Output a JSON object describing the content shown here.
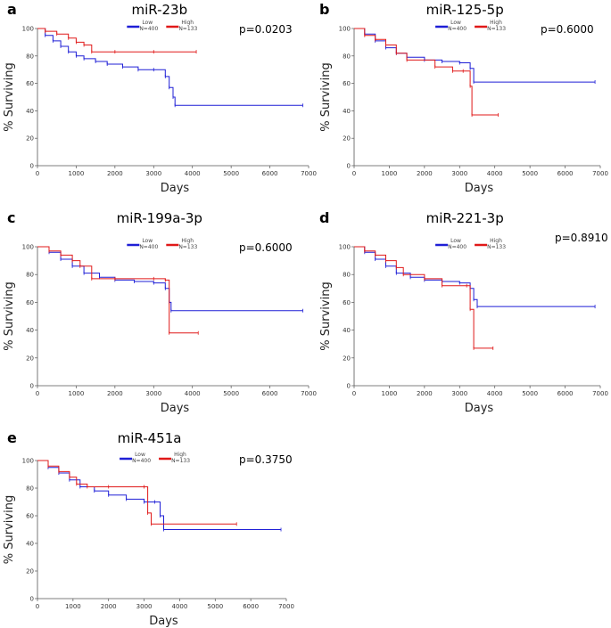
{
  "figure": {
    "panels": [
      {
        "letter": "a",
        "title": "miR-23b",
        "pvalue": "p=0.0203"
      },
      {
        "letter": "b",
        "title": "miR-125-5p",
        "pvalue": "p=0.6000"
      },
      {
        "letter": "c",
        "title": "miR-199a-3p",
        "pvalue": "p=0.6000"
      },
      {
        "letter": "d",
        "title": "miR-221-3p",
        "pvalue": "p=0.8910"
      },
      {
        "letter": "e",
        "title": "miR-451a",
        "pvalue": "p=0.3750"
      }
    ]
  },
  "colors": {
    "low": "#1f1fd6",
    "high": "#e01919",
    "axis": "#555555"
  },
  "chart_data": [
    {
      "type": "line",
      "title": "miR-23b",
      "xlabel": "Days",
      "ylabel": "% Surviving",
      "xlim": [
        0,
        7000
      ],
      "ylim": [
        0,
        100
      ],
      "xticks": [
        0,
        1000,
        2000,
        3000,
        4000,
        5000,
        6000,
        7000
      ],
      "yticks": [
        0,
        20,
        40,
        60,
        80,
        100
      ],
      "annotation": "p=0.0203",
      "legend": [
        {
          "name": "Low",
          "n": "N=400"
        },
        {
          "name": "High",
          "n": "N=133"
        }
      ],
      "series": [
        {
          "name": "Low",
          "key": "low",
          "x": [
            0,
            200,
            400,
            600,
            800,
            1000,
            1200,
            1500,
            1800,
            2200,
            2600,
            3000,
            3300,
            3400,
            3500,
            3550,
            6850
          ],
          "y": [
            100,
            95,
            91,
            87,
            83,
            80,
            78,
            76,
            74,
            72,
            70,
            70,
            65,
            57,
            50,
            44,
            44
          ]
        },
        {
          "name": "High",
          "key": "high",
          "x": [
            0,
            200,
            500,
            800,
            1000,
            1200,
            1400,
            2000,
            3000,
            4100
          ],
          "y": [
            100,
            98,
            96,
            93,
            90,
            88,
            83,
            83,
            83,
            83
          ]
        }
      ]
    },
    {
      "type": "line",
      "title": "miR-125-5p",
      "xlabel": "Days",
      "ylabel": "% Surviving",
      "xlim": [
        0,
        7000
      ],
      "ylim": [
        0,
        100
      ],
      "xticks": [
        0,
        1000,
        2000,
        3000,
        4000,
        5000,
        6000,
        7000
      ],
      "yticks": [
        0,
        20,
        40,
        60,
        80,
        100
      ],
      "annotation": "p=0.6000",
      "legend": [
        {
          "name": "Low",
          "n": "N=400"
        },
        {
          "name": "High",
          "n": "N=133"
        }
      ],
      "series": [
        {
          "name": "Low",
          "key": "low",
          "x": [
            0,
            300,
            600,
            900,
            1200,
            1500,
            2000,
            2500,
            3000,
            3300,
            3400,
            6850
          ],
          "y": [
            100,
            96,
            91,
            86,
            82,
            79,
            77,
            76,
            75,
            71,
            61,
            61
          ]
        },
        {
          "name": "High",
          "key": "high",
          "x": [
            0,
            300,
            600,
            900,
            1200,
            1500,
            2300,
            2800,
            3100,
            3300,
            3350,
            4100
          ],
          "y": [
            100,
            95,
            92,
            88,
            82,
            77,
            72,
            69,
            69,
            58,
            37,
            37
          ]
        }
      ]
    },
    {
      "type": "line",
      "title": "miR-199a-3p",
      "xlabel": "Days",
      "ylabel": "% Surviving",
      "xlim": [
        0,
        7000
      ],
      "ylim": [
        0,
        100
      ],
      "xticks": [
        0,
        1000,
        2000,
        3000,
        4000,
        5000,
        6000,
        7000
      ],
      "yticks": [
        0,
        20,
        40,
        60,
        80,
        100
      ],
      "annotation": "p=0.6000",
      "legend": [
        {
          "name": "Low",
          "n": "N=400"
        },
        {
          "name": "High",
          "n": "N=133"
        }
      ],
      "series": [
        {
          "name": "Low",
          "key": "low",
          "x": [
            0,
            300,
            600,
            900,
            1200,
            1600,
            2000,
            2500,
            3000,
            3300,
            3400,
            3450,
            6850
          ],
          "y": [
            100,
            96,
            91,
            86,
            81,
            78,
            76,
            75,
            74,
            70,
            60,
            54,
            54
          ]
        },
        {
          "name": "High",
          "key": "high",
          "x": [
            0,
            300,
            600,
            900,
            1100,
            1400,
            2000,
            3000,
            3300,
            3400,
            4150
          ],
          "y": [
            100,
            97,
            94,
            90,
            86,
            77,
            77,
            77,
            76,
            38,
            38
          ]
        }
      ]
    },
    {
      "type": "line",
      "title": "miR-221-3p",
      "xlabel": "Days",
      "ylabel": "% Surviving",
      "xlim": [
        0,
        7000
      ],
      "ylim": [
        0,
        100
      ],
      "xticks": [
        0,
        1000,
        2000,
        3000,
        4000,
        5000,
        6000,
        7000
      ],
      "yticks": [
        0,
        20,
        40,
        60,
        80,
        100
      ],
      "annotation": "p=0.8910",
      "legend": [
        {
          "name": "Low",
          "n": "N=400"
        },
        {
          "name": "High",
          "n": "N=133"
        }
      ],
      "series": [
        {
          "name": "Low",
          "key": "low",
          "x": [
            0,
            300,
            600,
            900,
            1200,
            1600,
            2000,
            2500,
            3000,
            3300,
            3400,
            3500,
            6850
          ],
          "y": [
            100,
            96,
            91,
            86,
            81,
            78,
            76,
            75,
            74,
            70,
            62,
            57,
            57
          ]
        },
        {
          "name": "High",
          "key": "high",
          "x": [
            0,
            300,
            600,
            900,
            1200,
            1400,
            2000,
            2500,
            3200,
            3300,
            3400,
            3950
          ],
          "y": [
            100,
            97,
            94,
            90,
            85,
            80,
            77,
            72,
            72,
            55,
            27,
            27
          ]
        }
      ]
    },
    {
      "type": "line",
      "title": "miR-451a",
      "xlabel": "Days",
      "ylabel": "% Surviving",
      "xlim": [
        0,
        7000
      ],
      "ylim": [
        0,
        100
      ],
      "xticks": [
        0,
        1000,
        2000,
        3000,
        4000,
        5000,
        6000,
        7000
      ],
      "yticks": [
        0,
        20,
        40,
        60,
        80,
        100
      ],
      "annotation": "p=0.3750",
      "legend": [
        {
          "name": "Low",
          "n": "N=400"
        },
        {
          "name": "High",
          "n": "N=133"
        }
      ],
      "series": [
        {
          "name": "Low",
          "key": "low",
          "x": [
            0,
            300,
            600,
            900,
            1200,
            1600,
            2000,
            2500,
            3000,
            3300,
            3450,
            3550,
            6850
          ],
          "y": [
            100,
            95,
            91,
            86,
            81,
            78,
            75,
            72,
            70,
            70,
            60,
            50,
            50
          ]
        },
        {
          "name": "High",
          "key": "high",
          "x": [
            0,
            300,
            600,
            900,
            1100,
            1400,
            2000,
            3000,
            3100,
            3200,
            5600
          ],
          "y": [
            100,
            96,
            92,
            88,
            83,
            81,
            81,
            81,
            62,
            54,
            54
          ]
        }
      ]
    }
  ]
}
